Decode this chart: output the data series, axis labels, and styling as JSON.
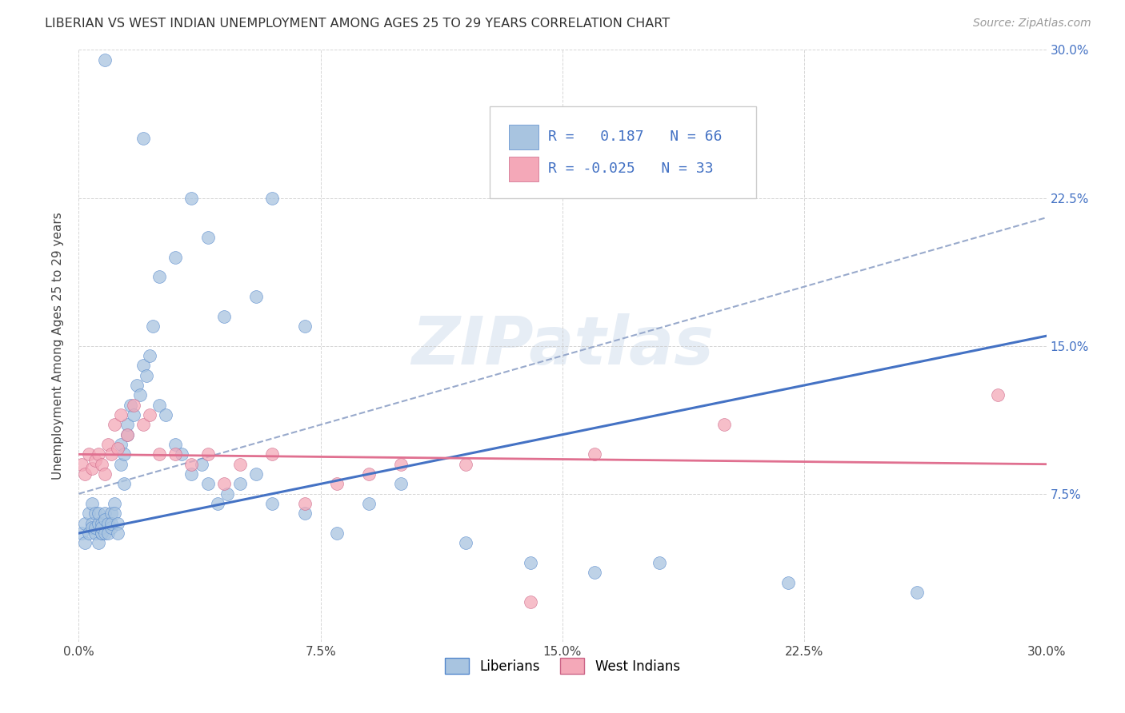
{
  "title": "LIBERIAN VS WEST INDIAN UNEMPLOYMENT AMONG AGES 25 TO 29 YEARS CORRELATION CHART",
  "source": "Source: ZipAtlas.com",
  "ylabel": "Unemployment Among Ages 25 to 29 years",
  "xlim": [
    0.0,
    0.3
  ],
  "ylim": [
    0.0,
    0.3
  ],
  "xtick_vals": [
    0.0,
    0.075,
    0.15,
    0.225,
    0.3
  ],
  "xtick_labels": [
    "0.0%",
    "7.5%",
    "15.0%",
    "22.5%",
    "30.0%"
  ],
  "ytick_vals": [
    0.0,
    0.075,
    0.15,
    0.225,
    0.3
  ],
  "ytick_labels_right": [
    "",
    "7.5%",
    "15.0%",
    "22.5%",
    "30.0%"
  ],
  "liberian_color": "#a8c4e0",
  "liberian_edge_color": "#5588cc",
  "west_indian_color": "#f4a8b8",
  "west_indian_edge_color": "#cc6688",
  "liberian_R": 0.187,
  "liberian_N": 66,
  "west_indian_R": -0.025,
  "west_indian_N": 33,
  "blue_line_color": "#4472c4",
  "pink_line_color": "#e07090",
  "dashed_line_color": "#99aacc",
  "watermark": "ZIPatlas",
  "legend_R1": "R =   0.187",
  "legend_N1": "N = 66",
  "legend_R2": "R = -0.025",
  "legend_N2": "N = 33",
  "blue_line_x0": 0.0,
  "blue_line_y0": 0.055,
  "blue_line_x1": 0.3,
  "blue_line_y1": 0.155,
  "pink_line_x0": 0.0,
  "pink_line_y0": 0.095,
  "pink_line_x1": 0.3,
  "pink_line_y1": 0.09,
  "dashed_line_x0": 0.0,
  "dashed_line_y0": 0.075,
  "dashed_line_x1": 0.3,
  "dashed_line_y1": 0.215,
  "lib_x": [
    0.001,
    0.002,
    0.002,
    0.003,
    0.003,
    0.004,
    0.004,
    0.004,
    0.005,
    0.005,
    0.005,
    0.006,
    0.006,
    0.006,
    0.007,
    0.007,
    0.007,
    0.007,
    0.008,
    0.008,
    0.008,
    0.009,
    0.009,
    0.01,
    0.01,
    0.01,
    0.011,
    0.011,
    0.012,
    0.012,
    0.013,
    0.013,
    0.014,
    0.014,
    0.015,
    0.015,
    0.016,
    0.017,
    0.018,
    0.019,
    0.02,
    0.021,
    0.022,
    0.023,
    0.025,
    0.027,
    0.03,
    0.032,
    0.035,
    0.038,
    0.04,
    0.043,
    0.046,
    0.05,
    0.055,
    0.06,
    0.07,
    0.08,
    0.09,
    0.1,
    0.12,
    0.14,
    0.16,
    0.18,
    0.22,
    0.26
  ],
  "lib_y": [
    0.055,
    0.06,
    0.05,
    0.065,
    0.055,
    0.06,
    0.07,
    0.058,
    0.055,
    0.065,
    0.058,
    0.06,
    0.05,
    0.065,
    0.055,
    0.06,
    0.055,
    0.058,
    0.065,
    0.055,
    0.062,
    0.06,
    0.055,
    0.065,
    0.058,
    0.06,
    0.07,
    0.065,
    0.06,
    0.055,
    0.1,
    0.09,
    0.095,
    0.08,
    0.105,
    0.11,
    0.12,
    0.115,
    0.13,
    0.125,
    0.14,
    0.135,
    0.145,
    0.16,
    0.12,
    0.115,
    0.1,
    0.095,
    0.085,
    0.09,
    0.08,
    0.07,
    0.075,
    0.08,
    0.085,
    0.07,
    0.065,
    0.055,
    0.07,
    0.08,
    0.05,
    0.04,
    0.035,
    0.04,
    0.03,
    0.025
  ],
  "wi_x": [
    0.001,
    0.002,
    0.003,
    0.004,
    0.005,
    0.006,
    0.007,
    0.008,
    0.009,
    0.01,
    0.011,
    0.012,
    0.013,
    0.015,
    0.017,
    0.02,
    0.022,
    0.025,
    0.03,
    0.035,
    0.04,
    0.045,
    0.05,
    0.06,
    0.07,
    0.08,
    0.09,
    0.1,
    0.12,
    0.14,
    0.16,
    0.2,
    0.285
  ],
  "wi_y": [
    0.09,
    0.085,
    0.095,
    0.088,
    0.092,
    0.095,
    0.09,
    0.085,
    0.1,
    0.095,
    0.11,
    0.098,
    0.115,
    0.105,
    0.12,
    0.11,
    0.115,
    0.095,
    0.095,
    0.09,
    0.095,
    0.08,
    0.09,
    0.095,
    0.07,
    0.08,
    0.085,
    0.09,
    0.09,
    0.02,
    0.095,
    0.11,
    0.125
  ],
  "lib_outliers_x": [
    0.008,
    0.02,
    0.035,
    0.06,
    0.04,
    0.03,
    0.025,
    0.055,
    0.045,
    0.07
  ],
  "lib_outliers_y": [
    0.295,
    0.255,
    0.225,
    0.225,
    0.205,
    0.195,
    0.185,
    0.175,
    0.165,
    0.16
  ]
}
